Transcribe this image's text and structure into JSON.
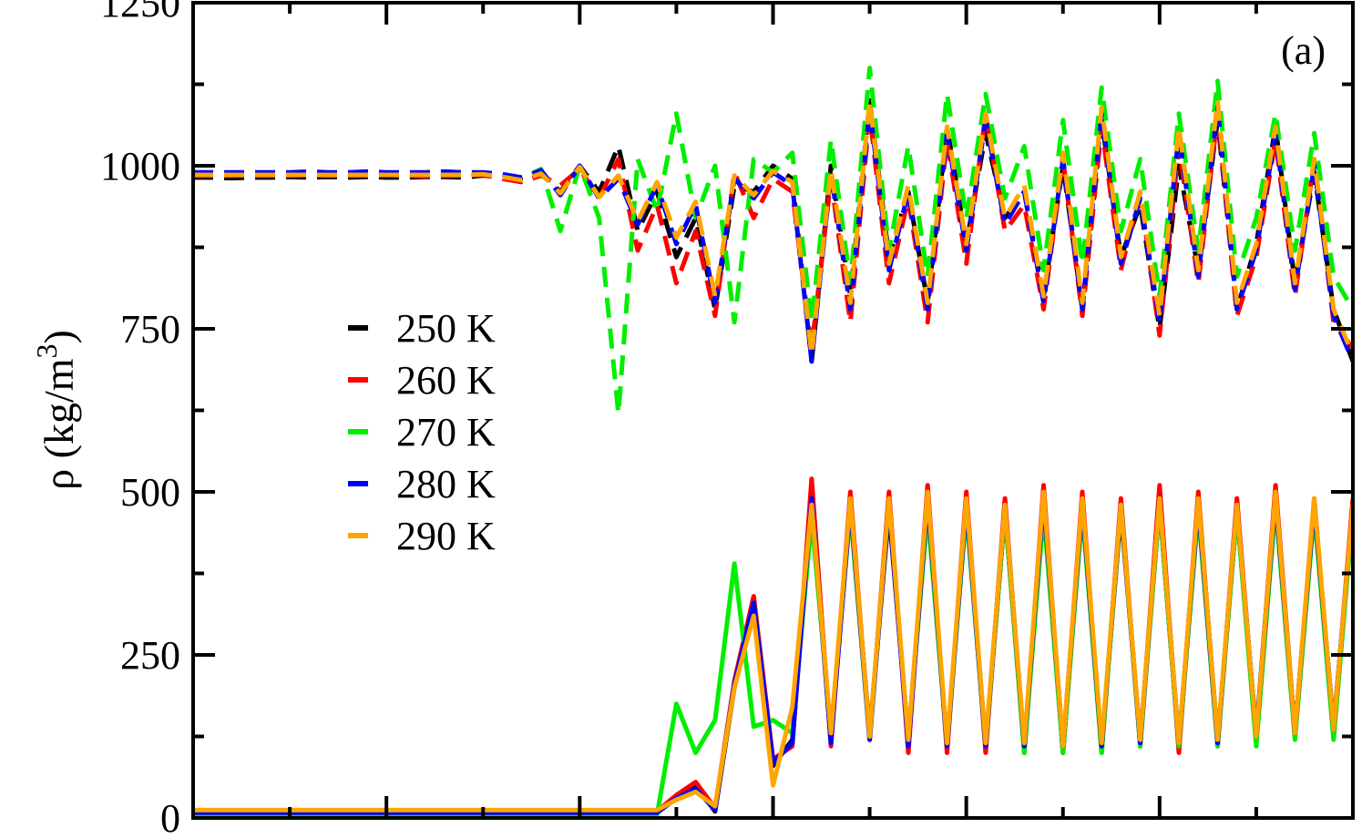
{
  "chart_data": {
    "type": "line",
    "panel_label": "(a)",
    "ylabel_main": "ρ (kg/m",
    "ylabel_sup": "3",
    "ylabel_close": ")",
    "xlabel": "",
    "ylim": [
      0,
      1250
    ],
    "y_ticks": [
      0,
      250,
      500,
      750,
      1000,
      1250
    ],
    "y_tick_labels": [
      "0",
      "250",
      "500",
      "750",
      "1000",
      "1250"
    ],
    "xlim": [
      0,
      12
    ],
    "x_major_ticks": [
      0,
      2,
      4,
      6,
      8,
      10,
      12
    ],
    "x_minor_ticks": [
      1,
      3,
      5,
      7,
      9,
      11
    ],
    "legend_position": "center-left",
    "legend": [
      "250 K",
      "260 K",
      "270 K",
      "280 K",
      "290 K"
    ],
    "colors": [
      "#000000",
      "#ff0000",
      "#00ee00",
      "#0000ff",
      "#ffa500"
    ],
    "note_styles": [
      "dashed",
      "solid"
    ],
    "x": [
      0.0,
      0.2,
      0.4,
      0.6,
      0.8,
      1.0,
      1.2,
      1.4,
      1.6,
      1.8,
      2.0,
      2.2,
      2.4,
      2.6,
      2.8,
      3.0,
      3.2,
      3.4,
      3.6,
      3.8,
      4.0,
      4.2,
      4.4,
      4.6,
      4.8,
      5.0,
      5.2,
      5.4,
      5.6,
      5.8,
      6.0,
      6.2,
      6.4,
      6.6,
      6.8,
      7.0,
      7.2,
      7.4,
      7.6,
      7.8,
      8.0,
      8.2,
      8.4,
      8.6,
      8.8,
      9.0,
      9.2,
      9.4,
      9.6,
      9.8,
      10.0,
      10.2,
      10.4,
      10.6,
      10.8,
      11.0,
      11.2,
      11.4,
      11.6,
      11.8,
      12.0
    ],
    "series_dashed": [
      {
        "name": "250 K",
        "values": [
          982,
          982,
          981,
          982,
          982,
          983,
          982,
          983,
          982,
          983,
          982,
          982,
          983,
          983,
          982,
          985,
          982,
          978,
          990,
          960,
          1000,
          960,
          1030,
          900,
          960,
          860,
          920,
          780,
          970,
          960,
          1000,
          980,
          700,
          1000,
          800,
          1100,
          860,
          960,
          790,
          1060,
          880,
          1050,
          920,
          960,
          800,
          1000,
          780,
          1070,
          860,
          940,
          750,
          1000,
          840,
          1070,
          780,
          880,
          1060,
          820,
          990,
          780,
          700
        ]
      },
      {
        "name": "260 K",
        "values": [
          985,
          985,
          985,
          985,
          985,
          985,
          986,
          985,
          985,
          985,
          986,
          985,
          984,
          985,
          985,
          986,
          980,
          975,
          985,
          970,
          995,
          950,
          1010,
          870,
          940,
          820,
          900,
          770,
          990,
          920,
          980,
          960,
          720,
          980,
          760,
          1080,
          820,
          950,
          760,
          1040,
          850,
          1080,
          900,
          940,
          780,
          1010,
          770,
          1060,
          840,
          960,
          740,
          1030,
          820,
          1080,
          770,
          860,
          1040,
          800,
          1010,
          760,
          720
        ]
      },
      {
        "name": "270 K",
        "values": [
          988,
          988,
          987,
          988,
          988,
          988,
          987,
          988,
          988,
          987,
          988,
          987,
          988,
          988,
          987,
          988,
          985,
          980,
          995,
          900,
          1000,
          920,
          620,
          1010,
          930,
          1080,
          920,
          1000,
          760,
          1010,
          990,
          1020,
          760,
          1040,
          820,
          1150,
          870,
          1030,
          830,
          1110,
          920,
          1110,
          950,
          1030,
          840,
          1070,
          850,
          1120,
          900,
          1010,
          800,
          1080,
          870,
          1130,
          830,
          920,
          1080,
          870,
          1050,
          830,
          780
        ]
      },
      {
        "name": "280 K",
        "values": [
          990,
          990,
          990,
          990,
          990,
          990,
          991,
          990,
          990,
          991,
          990,
          990,
          990,
          991,
          990,
          990,
          987,
          982,
          993,
          955,
          1000,
          950,
          980,
          910,
          970,
          880,
          940,
          790,
          980,
          950,
          990,
          970,
          700,
          990,
          780,
          1090,
          840,
          960,
          780,
          1050,
          870,
          1070,
          910,
          960,
          790,
          1010,
          780,
          1080,
          850,
          950,
          760,
          1050,
          830,
          1090,
          780,
          870,
          1050,
          810,
          1000,
          770,
          700
        ]
      },
      {
        "name": "290 K",
        "values": [
          986,
          986,
          986,
          986,
          986,
          986,
          986,
          986,
          986,
          986,
          986,
          986,
          986,
          986,
          986,
          987,
          983,
          978,
          988,
          958,
          998,
          952,
          985,
          915,
          975,
          890,
          945,
          800,
          985,
          955,
          992,
          975,
          710,
          995,
          790,
          1100,
          850,
          970,
          790,
          1060,
          880,
          1080,
          920,
          970,
          800,
          1020,
          790,
          1090,
          860,
          960,
          770,
          1060,
          840,
          1100,
          790,
          880,
          1060,
          820,
          1010,
          780,
          710
        ]
      }
    ],
    "series_solid": [
      {
        "name": "250 K",
        "values": [
          10,
          10,
          10,
          10,
          10,
          10,
          10,
          10,
          10,
          10,
          10,
          10,
          10,
          10,
          10,
          10,
          10,
          10,
          10,
          10,
          10,
          10,
          10,
          10,
          10,
          30,
          50,
          10,
          200,
          320,
          80,
          120,
          500,
          120,
          480,
          130,
          470,
          120,
          490,
          110,
          480,
          110,
          470,
          110,
          490,
          100,
          480,
          110,
          470,
          120,
          480,
          110,
          490,
          120,
          470,
          130,
          500,
          130,
          480,
          140,
          470
        ]
      },
      {
        "name": "260 K",
        "values": [
          10,
          10,
          10,
          10,
          10,
          10,
          10,
          10,
          10,
          10,
          10,
          10,
          10,
          10,
          10,
          10,
          10,
          10,
          10,
          10,
          10,
          10,
          10,
          10,
          10,
          35,
          55,
          15,
          210,
          340,
          90,
          110,
          520,
          110,
          500,
          120,
          500,
          100,
          510,
          100,
          500,
          100,
          490,
          100,
          510,
          100,
          500,
          100,
          490,
          110,
          510,
          100,
          500,
          110,
          490,
          120,
          510,
          130,
          490,
          130,
          490
        ]
      },
      {
        "name": "270 K",
        "values": [
          5,
          5,
          5,
          5,
          5,
          5,
          5,
          5,
          5,
          5,
          5,
          5,
          5,
          5,
          5,
          5,
          5,
          5,
          5,
          5,
          5,
          5,
          5,
          5,
          5,
          175,
          100,
          150,
          390,
          140,
          150,
          130,
          460,
          130,
          470,
          120,
          480,
          120,
          470,
          110,
          470,
          110,
          470,
          100,
          470,
          100,
          470,
          100,
          480,
          110,
          480,
          110,
          470,
          110,
          470,
          110,
          480,
          120,
          470,
          120,
          470
        ]
      },
      {
        "name": "280 K",
        "values": [
          8,
          8,
          8,
          8,
          8,
          8,
          8,
          8,
          8,
          8,
          8,
          8,
          8,
          8,
          8,
          8,
          8,
          8,
          8,
          8,
          8,
          8,
          8,
          8,
          8,
          30,
          45,
          12,
          205,
          330,
          85,
          115,
          490,
          115,
          480,
          120,
          480,
          110,
          490,
          110,
          480,
          110,
          480,
          110,
          490,
          110,
          480,
          110,
          480,
          115,
          490,
          115,
          480,
          115,
          480,
          125,
          490,
          130,
          480,
          135,
          480
        ]
      },
      {
        "name": "290 K",
        "values": [
          12,
          12,
          12,
          12,
          12,
          12,
          12,
          12,
          12,
          12,
          12,
          12,
          12,
          12,
          12,
          12,
          12,
          12,
          12,
          12,
          12,
          12,
          12,
          12,
          12,
          28,
          40,
          18,
          200,
          310,
          50,
          170,
          480,
          130,
          490,
          125,
          490,
          120,
          500,
          115,
          490,
          115,
          480,
          115,
          500,
          110,
          490,
          115,
          480,
          120,
          490,
          115,
          490,
          120,
          480,
          125,
          500,
          130,
          490,
          135,
          480
        ]
      }
    ]
  }
}
